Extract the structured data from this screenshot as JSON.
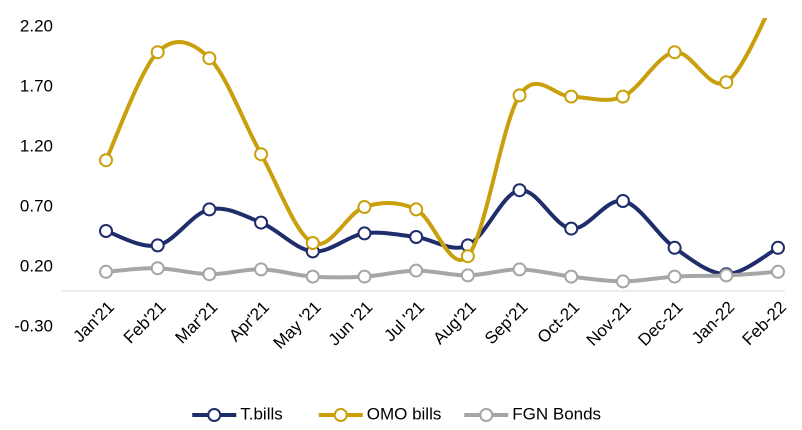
{
  "chart_data": {
    "type": "line",
    "categories": [
      "Jan'21",
      "Feb'21",
      "Mar'21",
      "Apr'21",
      "May '21",
      "Jun '21",
      "Jul '21",
      "Aug'21",
      "Sep'21",
      "Oct-21",
      "Nov-21",
      "Dec-21",
      "Jan-22",
      "Feb-22"
    ],
    "series": [
      {
        "name": "T.bills",
        "color": "#1f2d6b",
        "values": [
          0.5,
          0.38,
          0.68,
          0.57,
          0.33,
          0.48,
          0.45,
          0.38,
          0.84,
          0.52,
          0.75,
          0.36,
          0.14,
          0.36
        ]
      },
      {
        "name": "OMO bills",
        "color": "#c9a00c",
        "values": [
          1.09,
          1.99,
          1.94,
          1.14,
          0.4,
          0.7,
          0.68,
          0.29,
          1.63,
          1.62,
          1.62,
          1.99,
          1.74,
          2.5
        ]
      },
      {
        "name": "FGN Bonds",
        "color": "#a6a6a6",
        "values": [
          0.16,
          0.19,
          0.14,
          0.18,
          0.12,
          0.12,
          0.17,
          0.13,
          0.18,
          0.12,
          0.08,
          0.12,
          0.13,
          0.16
        ]
      }
    ],
    "ylim": [
      -0.3,
      2.2
    ],
    "yticks": [
      {
        "value": -0.3,
        "label": "-0.30"
      },
      {
        "value": 0.2,
        "label": "0.20"
      },
      {
        "value": 0.7,
        "label": "0.70"
      },
      {
        "value": 1.2,
        "label": "1.20"
      },
      {
        "value": 1.7,
        "label": "1.70"
      },
      {
        "value": 2.2,
        "label": "2.20"
      }
    ],
    "grid": false,
    "smooth": true,
    "legend": "bottom"
  }
}
